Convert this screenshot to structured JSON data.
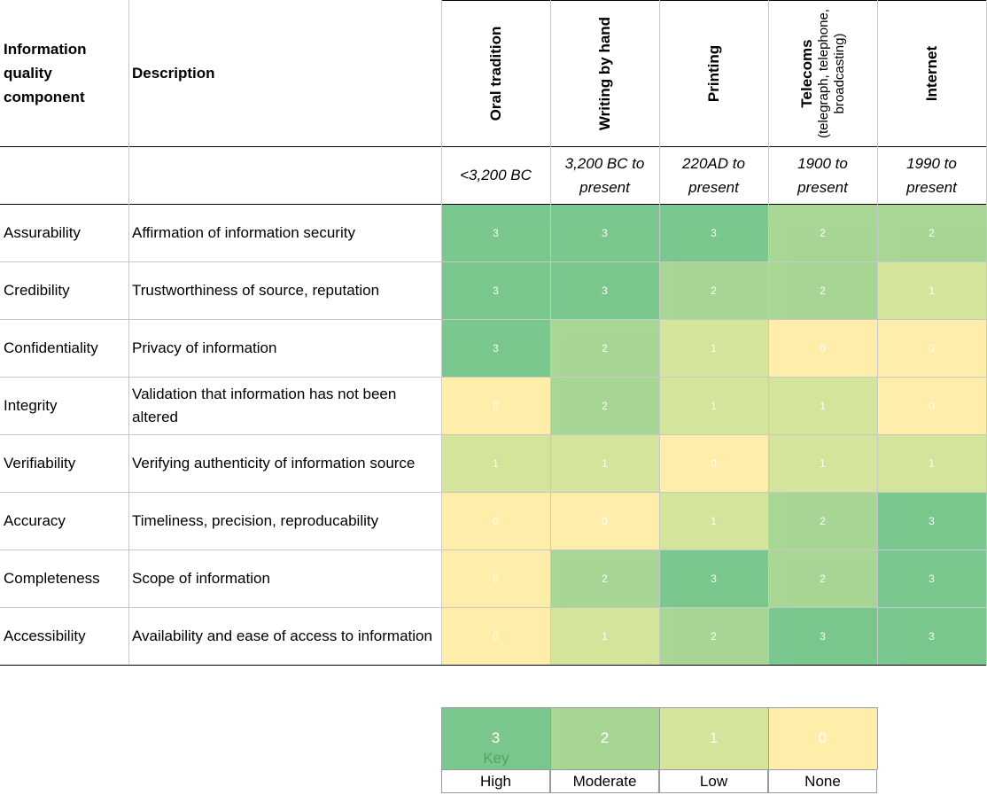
{
  "headers": {
    "component": "Information quality component",
    "description": "Description"
  },
  "technologies": [
    {
      "name": "Oral tradition",
      "sub": "",
      "period": "<3,200 BC"
    },
    {
      "name": "Writing by hand",
      "sub": "",
      "period": "3,200 BC to present"
    },
    {
      "name": "Printing",
      "sub": "",
      "period": "220AD to present"
    },
    {
      "name": "Telecoms",
      "sub": "(telegraph, telephone, broadcasting)",
      "period": "1900 to present"
    },
    {
      "name": "Internet",
      "sub": "",
      "period": "1990 to present"
    }
  ],
  "key": {
    "label": "Key",
    "levels": [
      {
        "value": 3,
        "label": "High"
      },
      {
        "value": 2,
        "label": "Moderate"
      },
      {
        "value": 1,
        "label": "Low"
      },
      {
        "value": 0,
        "label": "None"
      }
    ]
  },
  "colors": {
    "3": "#63be7b",
    "2": "#98cf82",
    "1": "#cde08a",
    "0": "#ffeb9c",
    "border": "#c8c8c8"
  },
  "chart_data": {
    "type": "heatmap",
    "x": [
      "Oral tradition",
      "Writing by hand",
      "Printing",
      "Telecoms",
      "Internet"
    ],
    "rows": [
      {
        "component": "Assurability",
        "description": "Affirmation of information security",
        "values": [
          3,
          3,
          3,
          2,
          2
        ]
      },
      {
        "component": "Credibility",
        "description": "Trustworthiness of source, reputation",
        "values": [
          3,
          3,
          2,
          2,
          1
        ]
      },
      {
        "component": "Confidentiality",
        "description": "Privacy of information",
        "values": [
          3,
          2,
          1,
          0,
          0
        ]
      },
      {
        "component": "Integrity",
        "description": "Validation that information has not been altered",
        "values": [
          0,
          2,
          1,
          1,
          0
        ]
      },
      {
        "component": "Verifiability",
        "description": "Verifying authenticity of information source",
        "values": [
          1,
          1,
          0,
          1,
          1
        ]
      },
      {
        "component": "Accuracy",
        "description": "Timeliness, precision, reproducability",
        "values": [
          0,
          0,
          1,
          2,
          3
        ]
      },
      {
        "component": "Completeness",
        "description": "Scope of information",
        "values": [
          0,
          2,
          3,
          2,
          3
        ]
      },
      {
        "component": "Accessibility",
        "description": "Availability and ease of access to information",
        "values": [
          0,
          1,
          2,
          3,
          3
        ]
      }
    ]
  }
}
